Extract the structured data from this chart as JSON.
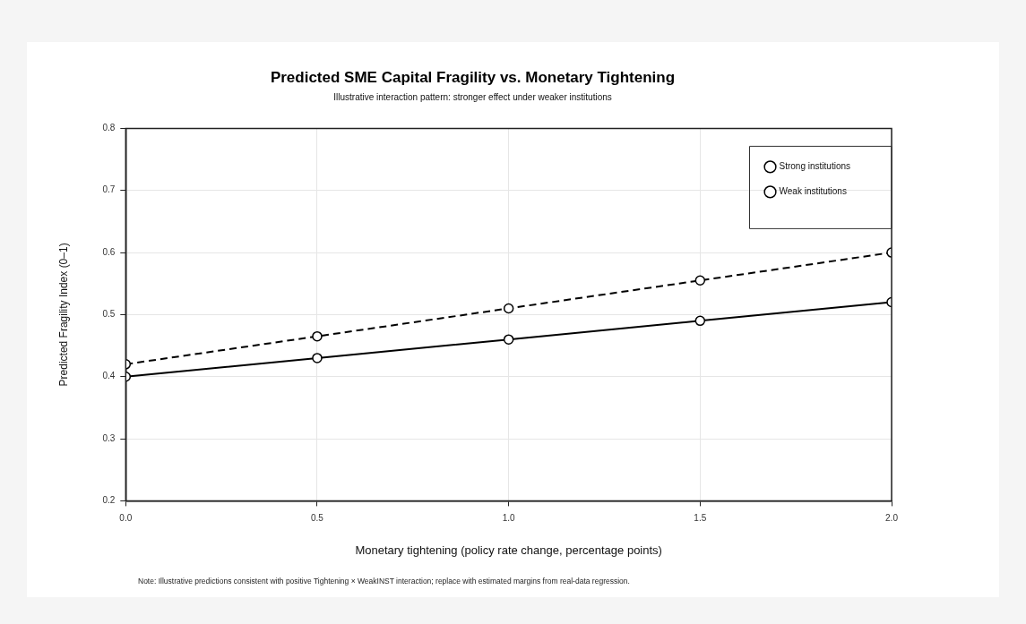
{
  "chart_data": {
    "type": "line",
    "title": "Predicted SME Capital Fragility vs. Monetary Tightening",
    "subtitle": "Illustrative interaction pattern: stronger effect under weaker institutions",
    "xlabel": "Monetary tightening (policy rate change, percentage points)",
    "ylabel": "Predicted Fragility Index (0–1)",
    "annotations": [
      "Note: Illustrative predictions consistent with positive Tightening × WeakINST interaction; replace with estimated margins from real-data regression."
    ],
    "x": [
      0,
      0.5,
      1,
      1.5,
      2
    ],
    "series": [
      {
        "name": "Strong institutions",
        "color": "#000000",
        "line_style": "solid",
        "values": [
          0.4,
          0.43,
          0.46,
          0.49,
          0.52
        ]
      },
      {
        "name": "Weak institutions",
        "color": "#000000",
        "line_style": "dashed",
        "values": [
          0.42,
          0.465,
          0.51,
          0.555,
          0.6
        ]
      }
    ],
    "xlim": [
      0,
      2
    ],
    "ylim": [
      0.2,
      0.8
    ],
    "xticks": [
      {
        "value": 0,
        "label": "0.0"
      },
      0.5,
      {
        "value": 1,
        "label": "1.0"
      },
      1.5,
      {
        "value": 2,
        "label": "2.0"
      }
    ],
    "yticks": [
      0.2,
      0.3,
      0.4,
      0.5,
      0.6,
      0.7,
      0.8
    ],
    "grid": true,
    "legend": "top right",
    "marker": "circle"
  }
}
